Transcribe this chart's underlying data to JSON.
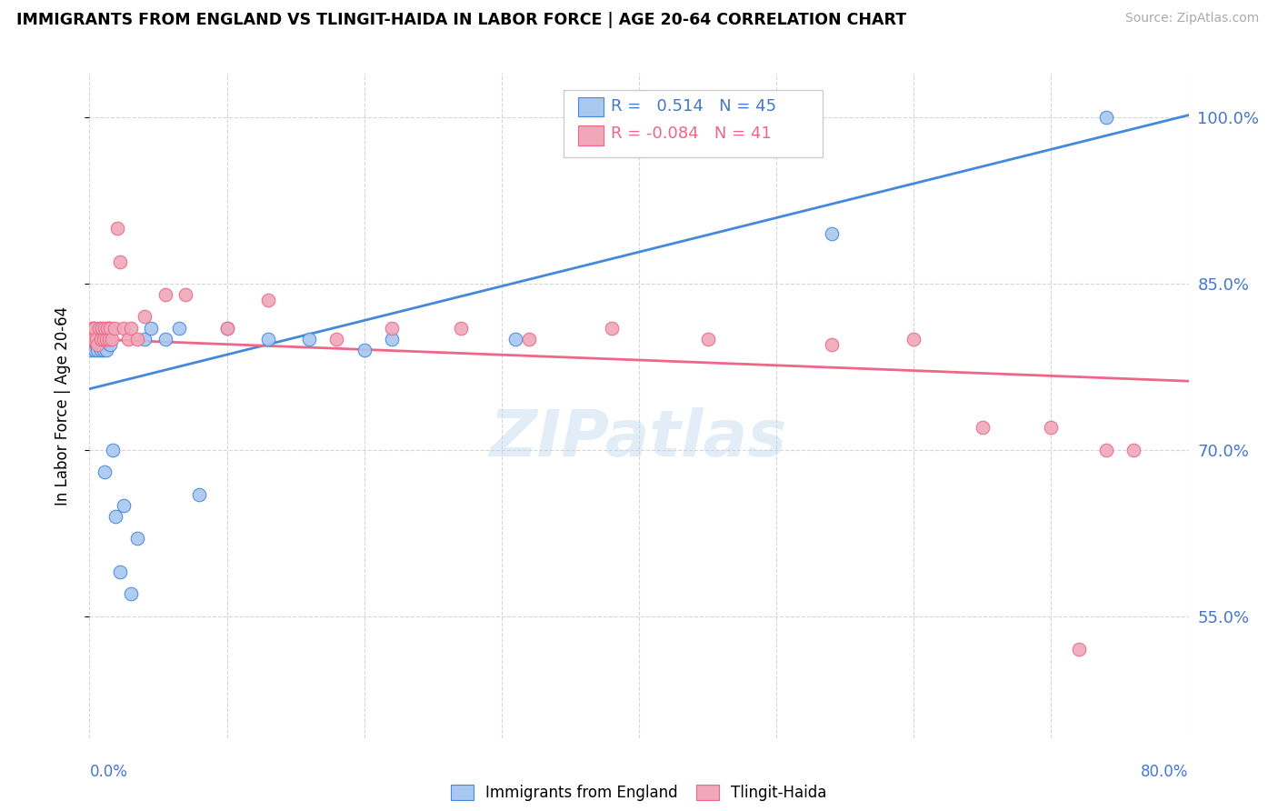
{
  "title": "IMMIGRANTS FROM ENGLAND VS TLINGIT-HAIDA IN LABOR FORCE | AGE 20-64 CORRELATION CHART",
  "source": "Source: ZipAtlas.com",
  "ylabel": "In Labor Force | Age 20-64",
  "xmin": 0.0,
  "xmax": 0.8,
  "ymin": 0.44,
  "ymax": 1.04,
  "ytick_vals": [
    0.55,
    0.7,
    0.85,
    1.0
  ],
  "ytick_labels": [
    "55.0%",
    "70.0%",
    "85.0%",
    "100.0%"
  ],
  "r_england": 0.514,
  "n_england": 45,
  "r_tlingit": -0.084,
  "n_tlingit": 41,
  "color_england": "#a8c8f0",
  "color_tlingit": "#f0a8b8",
  "color_england_line": "#4488dd",
  "color_tlingit_line": "#ee6688",
  "color_right_axis": "#4477cc",
  "england_x": [
    0.001,
    0.001,
    0.002,
    0.002,
    0.003,
    0.003,
    0.003,
    0.004,
    0.004,
    0.005,
    0.005,
    0.006,
    0.006,
    0.007,
    0.007,
    0.008,
    0.008,
    0.009,
    0.009,
    0.01,
    0.01,
    0.011,
    0.012,
    0.013,
    0.014,
    0.015,
    0.017,
    0.019,
    0.022,
    0.025,
    0.03,
    0.035,
    0.04,
    0.045,
    0.055,
    0.065,
    0.08,
    0.1,
    0.13,
    0.16,
    0.2,
    0.22,
    0.31,
    0.54,
    0.74
  ],
  "england_y": [
    0.8,
    0.79,
    0.8,
    0.795,
    0.81,
    0.8,
    0.795,
    0.8,
    0.79,
    0.805,
    0.795,
    0.8,
    0.79,
    0.805,
    0.8,
    0.795,
    0.79,
    0.8,
    0.795,
    0.8,
    0.79,
    0.68,
    0.79,
    0.8,
    0.81,
    0.795,
    0.7,
    0.64,
    0.59,
    0.65,
    0.57,
    0.62,
    0.8,
    0.81,
    0.8,
    0.81,
    0.66,
    0.81,
    0.8,
    0.8,
    0.79,
    0.8,
    0.8,
    0.895,
    1.0
  ],
  "tlingit_x": [
    0.001,
    0.002,
    0.003,
    0.004,
    0.005,
    0.006,
    0.007,
    0.008,
    0.009,
    0.01,
    0.011,
    0.012,
    0.013,
    0.014,
    0.015,
    0.016,
    0.018,
    0.02,
    0.022,
    0.025,
    0.028,
    0.03,
    0.035,
    0.04,
    0.055,
    0.07,
    0.1,
    0.13,
    0.18,
    0.22,
    0.27,
    0.32,
    0.38,
    0.45,
    0.54,
    0.6,
    0.65,
    0.7,
    0.72,
    0.74,
    0.76
  ],
  "tlingit_y": [
    0.8,
    0.81,
    0.8,
    0.81,
    0.8,
    0.795,
    0.81,
    0.8,
    0.81,
    0.8,
    0.81,
    0.8,
    0.81,
    0.8,
    0.81,
    0.8,
    0.81,
    0.9,
    0.87,
    0.81,
    0.8,
    0.81,
    0.8,
    0.82,
    0.84,
    0.84,
    0.81,
    0.835,
    0.8,
    0.81,
    0.81,
    0.8,
    0.81,
    0.8,
    0.795,
    0.8,
    0.72,
    0.72,
    0.52,
    0.7,
    0.7
  ],
  "eng_line_x0": 0.0,
  "eng_line_x1": 0.8,
  "eng_line_y0": 0.755,
  "eng_line_y1": 1.002,
  "tli_line_x0": 0.0,
  "tli_line_x1": 0.8,
  "tli_line_y0": 0.8,
  "tli_line_y1": 0.762
}
